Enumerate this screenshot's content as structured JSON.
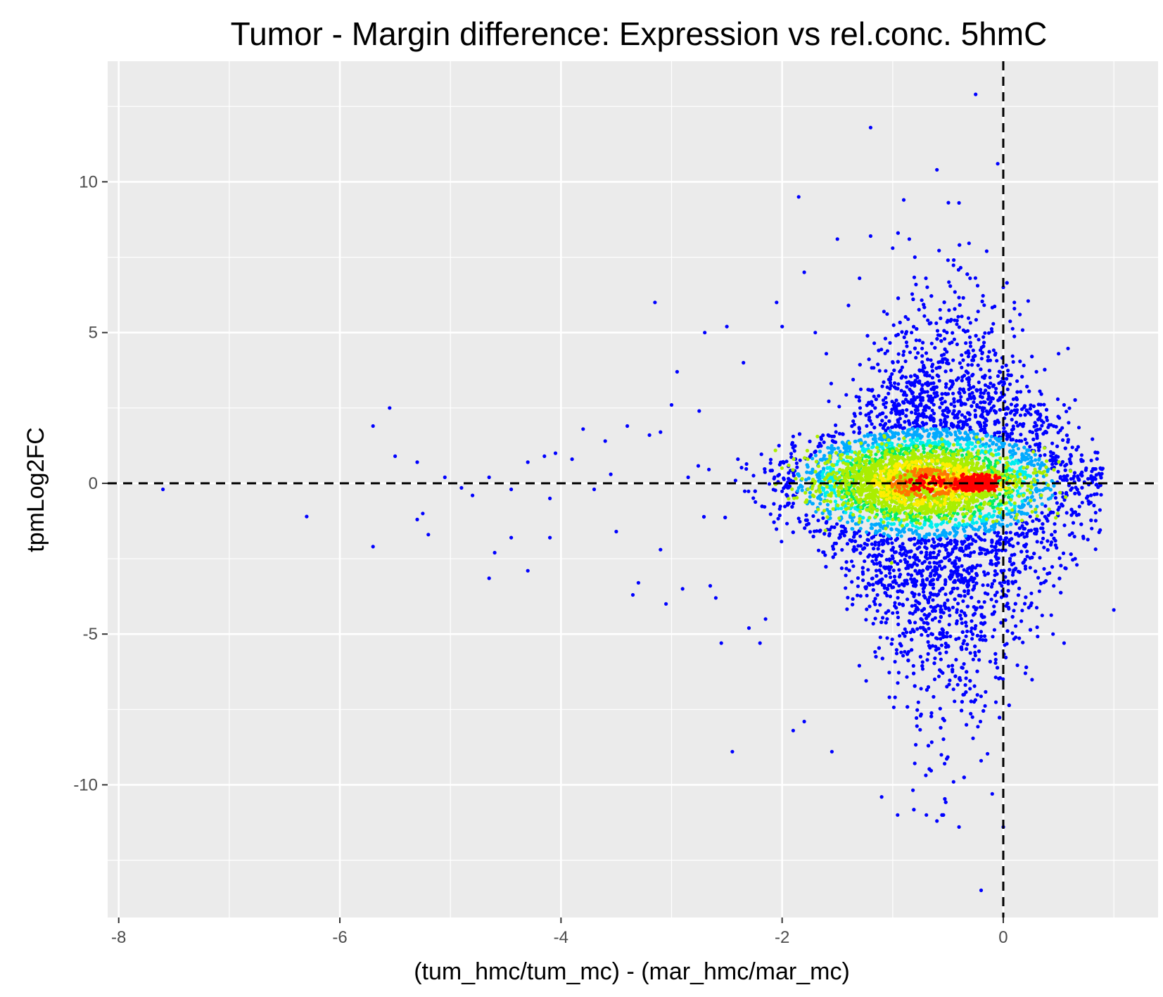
{
  "chart_data": {
    "type": "scatter",
    "title": "Tumor - Margin difference: Expression vs rel.conc. 5hmC",
    "xlabel": "(tum_hmc/tum_mc) - (mar_hmc/mar_mc)",
    "ylabel": "tpmLog2FC",
    "xlim": [
      -8.1,
      1.4
    ],
    "ylim": [
      -14.4,
      14.0
    ],
    "x_ticks": [
      -8,
      -6,
      -4,
      -2,
      0
    ],
    "x_tick_labels": [
      "-8",
      "-6",
      "-4",
      "-2",
      "0"
    ],
    "y_ticks": [
      -10,
      -5,
      0,
      5,
      10
    ],
    "y_tick_labels": [
      "-10",
      "-5",
      "0",
      "5",
      "10"
    ],
    "grid": true,
    "reference_lines": [
      {
        "orientation": "horizontal",
        "value": 0,
        "style": "dashed",
        "color": "#000000"
      },
      {
        "orientation": "vertical",
        "value": 0,
        "style": "dashed",
        "color": "#000000"
      }
    ],
    "color_encoding": "point density (blue = low, cyan, green, yellow, red = high)",
    "density_colors": [
      "#0000ff",
      "#00aaff",
      "#00eeee",
      "#00ee66",
      "#aaee00",
      "#ffee00",
      "#ff7700",
      "#ff0000"
    ],
    "density_center": {
      "x": -0.25,
      "y": 0
    },
    "series": [
      {
        "values": [
          [
            -7.6,
            -0.2
          ],
          [
            -6.3,
            -1.1
          ],
          [
            -5.7,
            1.9
          ],
          [
            -5.7,
            -2.1
          ],
          [
            -5.55,
            2.5
          ],
          [
            -5.5,
            0.9
          ],
          [
            -5.3,
            0.7
          ],
          [
            -5.3,
            -1.2
          ],
          [
            -5.25,
            -1.0
          ],
          [
            -5.2,
            -1.7
          ],
          [
            -5.05,
            0.2
          ],
          [
            -4.9,
            -0.15
          ],
          [
            -4.8,
            -0.4
          ],
          [
            -4.65,
            0.2
          ],
          [
            -4.65,
            -3.15
          ],
          [
            -4.6,
            -2.3
          ],
          [
            -4.45,
            -0.2
          ],
          [
            -4.45,
            -1.8
          ],
          [
            -4.3,
            -2.9
          ],
          [
            -4.3,
            0.7
          ],
          [
            -4.15,
            0.9
          ],
          [
            -4.1,
            -0.5
          ],
          [
            -4.1,
            -1.8
          ],
          [
            -4.05,
            1.0
          ],
          [
            -3.9,
            0.8
          ],
          [
            -3.8,
            1.8
          ],
          [
            -3.7,
            -0.2
          ],
          [
            -3.6,
            1.4
          ],
          [
            -3.55,
            0.3
          ],
          [
            -3.5,
            -1.6
          ],
          [
            -3.4,
            1.9
          ],
          [
            -3.35,
            -3.7
          ],
          [
            -3.3,
            -3.3
          ],
          [
            -3.2,
            1.6
          ],
          [
            -3.15,
            6.0
          ],
          [
            -3.1,
            -2.2
          ],
          [
            -3.1,
            1.7
          ],
          [
            -3.05,
            -4.0
          ],
          [
            -3.0,
            2.6
          ],
          [
            -2.95,
            3.7
          ],
          [
            -2.9,
            -3.5
          ],
          [
            -2.85,
            0.2
          ],
          [
            -2.75,
            2.4
          ],
          [
            -2.7,
            5.0
          ],
          [
            -2.65,
            -3.4
          ],
          [
            -2.6,
            -3.8
          ],
          [
            -2.55,
            -5.3
          ],
          [
            -2.5,
            5.2
          ],
          [
            -2.45,
            -8.9
          ],
          [
            -2.4,
            0.8
          ],
          [
            -2.35,
            4.0
          ],
          [
            -2.3,
            -4.8
          ],
          [
            -2.2,
            -5.3
          ],
          [
            -2.15,
            -4.5
          ],
          [
            -2.05,
            6.0
          ],
          [
            -2.0,
            5.2
          ],
          [
            -1.9,
            -8.2
          ],
          [
            -1.85,
            9.5
          ],
          [
            -1.8,
            7.0
          ],
          [
            -1.8,
            -7.9
          ],
          [
            -1.7,
            5.0
          ],
          [
            -1.6,
            4.3
          ],
          [
            -1.55,
            -8.9
          ],
          [
            -1.5,
            8.1
          ],
          [
            -1.4,
            5.9
          ],
          [
            -1.3,
            6.8
          ],
          [
            -1.2,
            11.8
          ],
          [
            -1.2,
            8.2
          ],
          [
            -1.1,
            -10.4
          ],
          [
            -1.0,
            7.8
          ],
          [
            -0.9,
            9.4
          ],
          [
            -0.85,
            8.1
          ],
          [
            -0.8,
            7.5
          ],
          [
            -0.7,
            6.8
          ],
          [
            -0.6,
            10.4
          ],
          [
            -0.6,
            -11.2
          ],
          [
            -0.5,
            7.4
          ],
          [
            -0.45,
            -9.9
          ],
          [
            -0.4,
            -11.4
          ],
          [
            -0.4,
            9.3
          ],
          [
            -0.3,
            6.8
          ],
          [
            -0.25,
            12.9
          ],
          [
            -0.2,
            -13.5
          ],
          [
            -0.2,
            -9.2
          ],
          [
            -0.15,
            7.7
          ],
          [
            -0.1,
            -10.3
          ],
          [
            -0.05,
            10.6
          ],
          [
            0.0,
            6.5
          ],
          [
            0.0,
            -11.4
          ],
          [
            0.1,
            6.0
          ],
          [
            0.15,
            5.6
          ],
          [
            0.2,
            -6.3
          ],
          [
            0.3,
            3.7
          ],
          [
            0.4,
            -3.0
          ],
          [
            0.45,
            -5.0
          ],
          [
            0.5,
            4.3
          ],
          [
            0.55,
            2.6
          ],
          [
            0.55,
            -5.3
          ],
          [
            0.6,
            0.8
          ],
          [
            0.65,
            -2.5
          ],
          [
            0.75,
            0.5
          ],
          [
            0.8,
            -1.5
          ],
          [
            1.0,
            -4.2
          ]
        ]
      }
    ]
  }
}
